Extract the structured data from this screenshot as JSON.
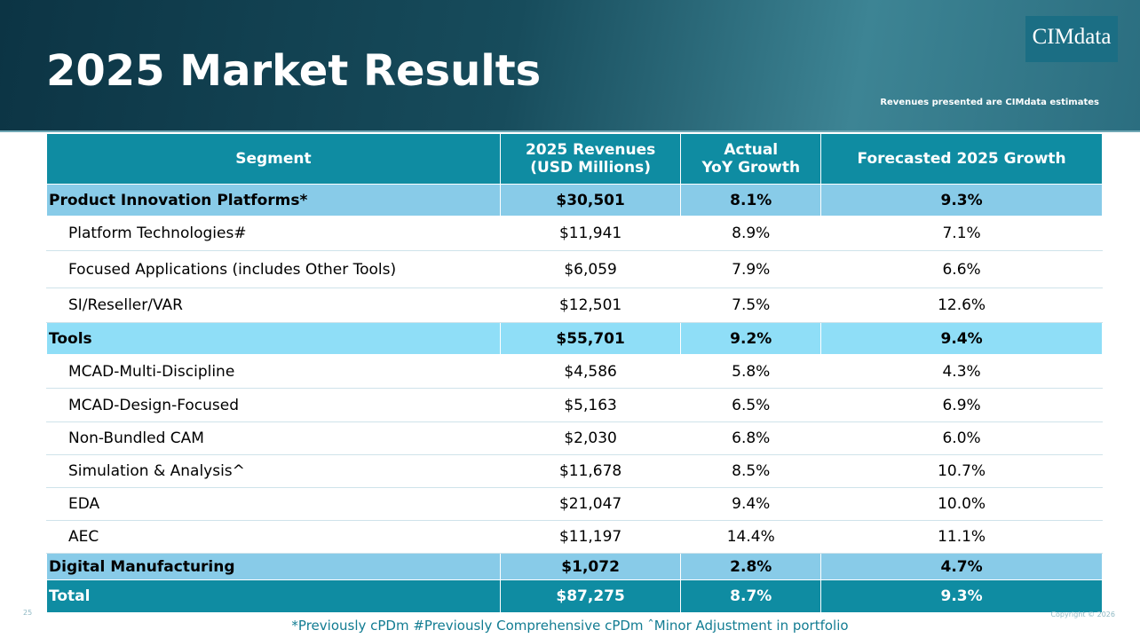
{
  "header": {
    "title": "2025 Market Results",
    "logo": "CIMdata",
    "note": "Revenues presented are CIMdata estimates"
  },
  "table": {
    "columns": [
      "Segment",
      "2025 Revenues\n(USD Millions)",
      "Actual\nYoY Growth",
      "Forecasted 2025 Growth"
    ],
    "rows": [
      [
        "Product Innovation Platforms*",
        "$30,501",
        "8.1%",
        "9.3%"
      ],
      [
        "Platform Technologies#",
        "$11,941",
        "8.9%",
        "7.1%"
      ],
      [
        "Focused Applications (includes Other Tools)",
        "$6,059",
        "7.9%",
        "6.6%"
      ],
      [
        "SI/Reseller/VAR",
        "$12,501",
        "7.5%",
        "12.6%"
      ],
      [
        "Tools",
        "$55,701",
        "9.2%",
        "9.4%"
      ],
      [
        "MCAD-Multi-Discipline",
        "$4,586",
        "5.8%",
        "4.3%"
      ],
      [
        "MCAD-Design-Focused",
        "$5,163",
        "6.5%",
        "6.9%"
      ],
      [
        "Non-Bundled CAM",
        "$2,030",
        "6.8%",
        "6.0%"
      ],
      [
        "Simulation & Analysis^",
        "$11,678",
        "8.5%",
        "10.7%"
      ],
      [
        "EDA",
        "$21,047",
        "9.4%",
        "10.0%"
      ],
      [
        "AEC",
        "$11,197",
        "14.4%",
        "11.1%"
      ],
      [
        "Digital Manufacturing",
        "$1,072",
        "2.8%",
        "4.7%"
      ],
      [
        "Total",
        "$87,275",
        "8.7%",
        "9.3%"
      ]
    ]
  },
  "footer": {
    "note": "*Previously cPDm #Previously Comprehensive cPDm ˆMinor Adjustment in portfolio",
    "page": "25",
    "copyright": "Copyright © 2026"
  }
}
